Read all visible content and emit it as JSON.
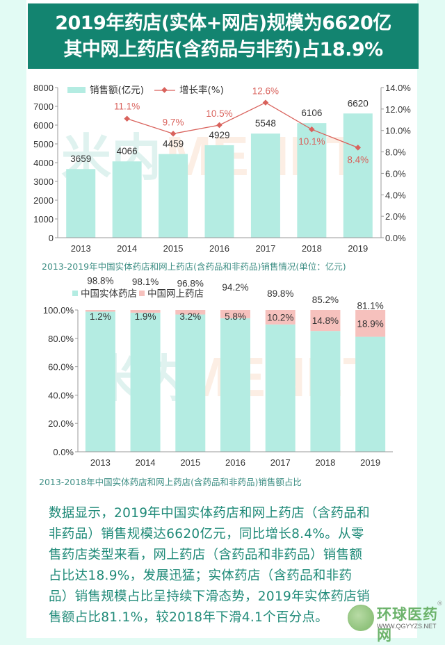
{
  "header": {
    "line1": "2019年药店(实体+网店)规模为6620亿",
    "line2": "其中网上药店(含药品与非药)占18.9%"
  },
  "watermark": {
    "cn": "米内",
    "en": "MENET"
  },
  "colors": {
    "title_bg": "#138470",
    "bar": "#b4ece2",
    "line": "#d9625c",
    "online": "#f6c1bd",
    "caption": "#3f8f85"
  },
  "chart_data": [
    {
      "type": "bar+line",
      "title": "",
      "caption": "2013-2019年中国实体药店和网上药店(含药品和非药品)销售情况(单位：亿元)",
      "categories": [
        "2013",
        "2014",
        "2015",
        "2016",
        "2017",
        "2018",
        "2019"
      ],
      "series": [
        {
          "name": "销售额(亿元)",
          "type": "bar",
          "axis": "left",
          "values": [
            3659,
            4066,
            4459,
            4929,
            5548,
            6106,
            6620
          ],
          "labels": [
            "3659",
            "4066",
            "4459",
            "4929",
            "5548",
            "6106",
            "6620"
          ]
        },
        {
          "name": "增长率(%)",
          "type": "line",
          "axis": "right",
          "values": [
            null,
            11.1,
            9.7,
            10.5,
            12.6,
            10.1,
            8.4
          ],
          "labels": [
            "",
            "11.1%",
            "9.7%",
            "10.5%",
            "12.6%",
            "10.1%",
            "8.4%"
          ]
        }
      ],
      "ylim_left": [
        0,
        8000
      ],
      "yticks_left": [
        "0",
        "1000",
        "2000",
        "3000",
        "4000",
        "5000",
        "6000",
        "7000",
        "8000"
      ],
      "ylim_right": [
        0,
        14
      ],
      "yticks_right": [
        "0.0%",
        "2.0%",
        "4.0%",
        "6.0%",
        "8.0%",
        "10.0%",
        "12.0%",
        "14.0%"
      ],
      "legend": "top"
    },
    {
      "type": "stacked-bar",
      "caption": "2013-2018年中国实体药店和网上药店(含药品和非药品)销售额占比",
      "categories": [
        "2013",
        "2014",
        "2015",
        "2016",
        "2017",
        "2018",
        "2019"
      ],
      "series": [
        {
          "name": "中国实体药店",
          "values": [
            98.8,
            98.1,
            96.8,
            94.2,
            89.8,
            85.2,
            81.1
          ],
          "labels": [
            "98.8%",
            "98.1%",
            "96.8%",
            "94.2%",
            "89.8%",
            "85.2%",
            "81.1%"
          ]
        },
        {
          "name": "中国网上药店",
          "values": [
            1.2,
            1.9,
            3.2,
            5.8,
            10.2,
            14.8,
            18.9
          ],
          "labels": [
            "1.2%",
            "1.9%",
            "3.2%",
            "5.8%",
            "10.2%",
            "14.8%",
            "18.9%"
          ]
        }
      ],
      "ylim": [
        0,
        100
      ],
      "yticks": [
        "0.0%",
        "20.0%",
        "40.0%",
        "60.0%",
        "80.0%",
        "100.0%"
      ],
      "legend": "top"
    }
  ],
  "body": {
    "lines": [
      "数据显示，2019年中国实体药店和网上药店（含药品和",
      "非药品）销售规模达6620亿元，同比增长8.4%。从零",
      "售药店类型来看，网上药店（含药品和非药品）销售额",
      "占比达18.9%，发展迅猛；实体药店（含药品和非药",
      "品）销售规模占比呈持续下滑态势，2019年实体药店销",
      "售额占比81.1%，较2018年下滑4.1个百分点。"
    ]
  },
  "logo": {
    "cn": "环球医药网",
    "en": "WWW.QGYYZS.NET",
    "reg": "®"
  }
}
